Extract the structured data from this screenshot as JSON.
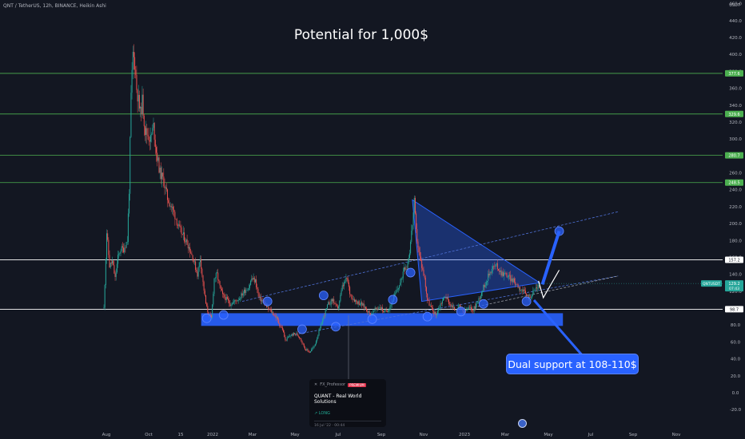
{
  "header": {
    "symbol_info": "QNT / TetherUS, 12h, BINANCE, Heikin Ashi"
  },
  "axis_unit": "USDT",
  "callout": {
    "text": "Dual support at 108-110$"
  },
  "idea_card": {
    "author": "FX_Professor",
    "badge": "PREMIUM",
    "title": "QUANT - Real World Solutions",
    "direction": "LONG",
    "date": "16 Jul '22 · 00:44"
  },
  "colors": {
    "background": "#131722",
    "up_candle": "#26a69a",
    "down_candle": "#ef5350",
    "green_level": "#4caf50",
    "white_level": "#ffffff",
    "blue_shape": "#2962ff"
  },
  "chart_data": {
    "type": "line",
    "title": "Potential for 1,000$",
    "price_axis_ticks": [
      -20,
      0,
      20,
      40,
      60,
      80,
      100,
      120,
      140,
      160,
      180,
      200,
      220,
      240,
      260,
      280,
      300,
      320,
      340,
      360,
      380,
      400,
      420,
      440,
      460
    ],
    "ylim": [
      -27,
      470
    ],
    "time_axis_labels": [
      "Aug",
      "Oct",
      "15",
      "2022",
      "Mar",
      "May",
      "Jul",
      "Sep",
      "Nov",
      "2023",
      "Mar",
      "May",
      "Jul",
      "Sep",
      "Nov"
    ],
    "xlim": [
      0,
      800
    ],
    "price_path": [
      [
        0,
        100
      ],
      [
        3,
        190
      ],
      [
        6,
        150
      ],
      [
        9,
        155
      ],
      [
        12,
        135
      ],
      [
        15,
        160
      ],
      [
        18,
        170
      ],
      [
        21,
        170
      ],
      [
        23,
        175
      ],
      [
        25,
        180
      ],
      [
        27,
        240
      ],
      [
        29,
        350
      ],
      [
        31,
        400
      ],
      [
        33,
        390
      ],
      [
        35,
        360
      ],
      [
        37,
        345
      ],
      [
        39,
        330
      ],
      [
        41,
        345
      ],
      [
        44,
        310
      ],
      [
        47,
        305
      ],
      [
        50,
        300
      ],
      [
        53,
        315
      ],
      [
        56,
        285
      ],
      [
        60,
        260
      ],
      [
        64,
        250
      ],
      [
        68,
        230
      ],
      [
        72,
        220
      ],
      [
        76,
        210
      ],
      [
        80,
        195
      ],
      [
        85,
        185
      ],
      [
        90,
        175
      ],
      [
        95,
        160
      ],
      [
        100,
        140
      ],
      [
        103,
        160
      ],
      [
        106,
        130
      ],
      [
        109,
        105
      ],
      [
        112,
        92
      ],
      [
        115,
        88
      ],
      [
        118,
        135
      ],
      [
        121,
        140
      ],
      [
        124,
        125
      ],
      [
        127,
        115
      ],
      [
        130,
        112
      ],
      [
        135,
        105
      ],
      [
        140,
        108
      ],
      [
        145,
        112
      ],
      [
        150,
        120
      ],
      [
        155,
        125
      ],
      [
        158,
        135
      ],
      [
        162,
        132
      ],
      [
        166,
        112
      ],
      [
        170,
        108
      ],
      [
        175,
        100
      ],
      [
        180,
        95
      ],
      [
        185,
        88
      ],
      [
        188,
        80
      ],
      [
        191,
        75
      ],
      [
        194,
        62
      ],
      [
        197,
        65
      ],
      [
        200,
        68
      ],
      [
        205,
        70
      ],
      [
        210,
        65
      ],
      [
        215,
        52
      ],
      [
        220,
        48
      ],
      [
        225,
        55
      ],
      [
        230,
        72
      ],
      [
        235,
        90
      ],
      [
        240,
        105
      ],
      [
        245,
        110
      ],
      [
        250,
        98
      ],
      [
        255,
        125
      ],
      [
        260,
        135
      ],
      [
        263,
        118
      ],
      [
        266,
        112
      ],
      [
        270,
        108
      ],
      [
        275,
        105
      ],
      [
        280,
        100
      ],
      [
        285,
        92
      ],
      [
        290,
        98
      ],
      [
        295,
        102
      ],
      [
        300,
        95
      ],
      [
        305,
        100
      ],
      [
        310,
        112
      ],
      [
        315,
        125
      ],
      [
        318,
        132
      ],
      [
        321,
        150
      ],
      [
        324,
        148
      ],
      [
        327,
        168
      ],
      [
        330,
        200
      ],
      [
        332,
        225
      ],
      [
        334,
        190
      ],
      [
        337,
        165
      ],
      [
        340,
        150
      ],
      [
        343,
        135
      ],
      [
        346,
        110
      ],
      [
        350,
        100
      ],
      [
        355,
        92
      ],
      [
        360,
        105
      ],
      [
        365,
        115
      ],
      [
        370,
        105
      ],
      [
        375,
        98
      ],
      [
        380,
        102
      ],
      [
        385,
        95
      ],
      [
        390,
        100
      ],
      [
        395,
        98
      ],
      [
        400,
        108
      ],
      [
        405,
        122
      ],
      [
        410,
        135
      ],
      [
        415,
        148
      ],
      [
        420,
        150
      ],
      [
        425,
        142
      ],
      [
        430,
        140
      ],
      [
        435,
        135
      ],
      [
        440,
        130
      ],
      [
        445,
        124
      ],
      [
        450,
        118
      ],
      [
        455,
        112
      ],
      [
        458,
        117
      ],
      [
        462,
        124
      ],
      [
        466,
        126
      ]
    ],
    "horizontal_levels": [
      {
        "price": 377.6,
        "label": "377.6",
        "color": "green"
      },
      {
        "price": 329.6,
        "label": "329.6",
        "color": "green"
      },
      {
        "price": 280.7,
        "label": "280.7",
        "color": "green"
      },
      {
        "price": 248.5,
        "label": "248.5",
        "color": "green"
      },
      {
        "price": 157.2,
        "label": "157.2",
        "color": "white"
      },
      {
        "price": 98.7,
        "label": "98.7",
        "color": "white"
      }
    ],
    "current_price": {
      "ticker": "QNTUSDT",
      "price_label": "129.2",
      "countdown": "07:43",
      "price": 129.2
    },
    "support_zone": {
      "x_start": 110,
      "x_end": 485,
      "price_low": 79,
      "price_high": 94
    },
    "triangle": [
      [
        330,
        228
      ],
      [
        466,
        130
      ],
      [
        340,
        108
      ]
    ],
    "channel_lines": [
      {
        "style": "dashed-blue",
        "points": [
          [
            148,
            108
          ],
          [
            550,
            214
          ]
        ]
      },
      {
        "style": "dashed-blue",
        "points": [
          [
            200,
            68
          ],
          [
            550,
            138
          ]
        ]
      },
      {
        "style": "dashed-white",
        "points": [
          [
            400,
            102
          ],
          [
            550,
            138
          ]
        ]
      }
    ],
    "touch_points": [
      [
        110,
        88
      ],
      [
        128,
        92
      ],
      [
        175,
        108
      ],
      [
        235,
        115
      ],
      [
        212,
        75
      ],
      [
        248,
        78
      ],
      [
        287,
        87
      ],
      [
        309,
        110
      ],
      [
        328,
        142
      ],
      [
        346,
        90
      ],
      [
        382,
        96
      ],
      [
        406,
        105
      ],
      [
        452,
        108
      ],
      [
        487,
        191
      ]
    ],
    "projection_arrows": [
      {
        "style": "blue",
        "from": [
          469,
          128
        ],
        "to": [
          487,
          191
        ]
      },
      {
        "style": "white",
        "from": [
          470,
          135
        ],
        "to": [
          487,
          145
        ]
      }
    ]
  }
}
